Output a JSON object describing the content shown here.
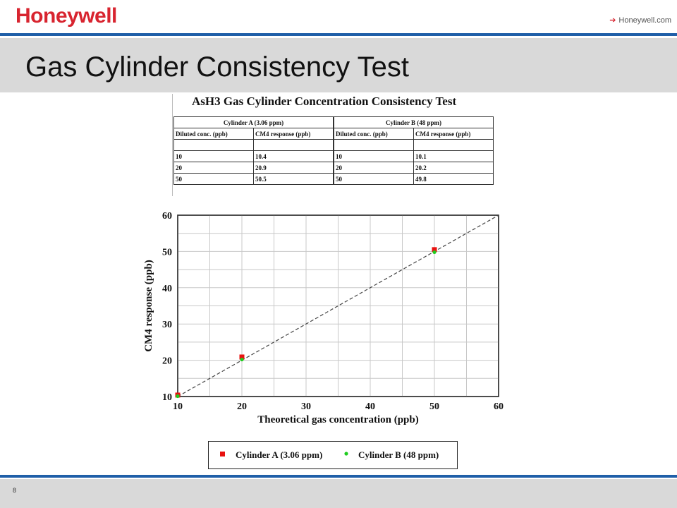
{
  "header": {
    "logo": "Honeywell",
    "link_arrow": "➔",
    "link_text": "Honeywell.com"
  },
  "slide": {
    "title": "Gas Cylinder Consistency Test",
    "page_number": "8"
  },
  "table": {
    "title": "AsH3 Gas Cylinder Concentration Consistency Test",
    "group_headers": [
      "Cylinder A (3.06 ppm)",
      "Cylinder B (48 ppm)"
    ],
    "column_headers": [
      "Diluted conc. (ppb)",
      "CM4 response (ppb)",
      "Diluted conc. (ppb)",
      "CM4 response (ppb)"
    ],
    "rows": [
      [
        "",
        "",
        "",
        ""
      ],
      [
        "10",
        "10.4",
        "10",
        "10.1"
      ],
      [
        "20",
        "20.9",
        "20",
        "20.2"
      ],
      [
        "50",
        "50.5",
        "50",
        "49.8"
      ]
    ]
  },
  "colors": {
    "brand_red": "#d8242f",
    "rule_blue": "#1f5fa8",
    "cylinder_a": "#e8110f",
    "cylinder_b": "#1fcc1f"
  },
  "chart_data": {
    "type": "scatter",
    "xlabel": "Theoretical gas concentration (ppb)",
    "ylabel": "CM4 response (ppb)",
    "xlim": [
      10,
      60
    ],
    "ylim": [
      10,
      60
    ],
    "xticks": [
      "10",
      "20",
      "30",
      "40",
      "50",
      "60"
    ],
    "yticks": [
      "10",
      "20",
      "30",
      "40",
      "50",
      "60"
    ],
    "grid": true,
    "legend_placement": "bottom",
    "reference_line": {
      "x": [
        10,
        60
      ],
      "y": [
        10,
        60
      ],
      "style": "dashed"
    },
    "series": [
      {
        "name": "Cylinder A (3.06 ppm)",
        "marker": "square",
        "x": [
          10,
          20,
          50
        ],
        "y": [
          10.4,
          20.9,
          50.5
        ]
      },
      {
        "name": "Cylinder B (48 ppm)",
        "marker": "circle",
        "x": [
          10,
          20,
          50
        ],
        "y": [
          10.1,
          20.2,
          49.8
        ]
      }
    ]
  }
}
